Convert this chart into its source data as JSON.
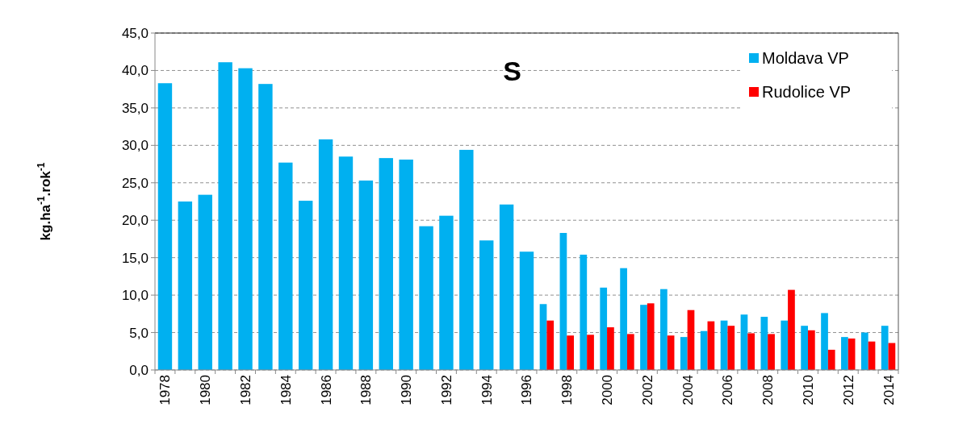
{
  "chart_data": {
    "type": "bar",
    "title": "S",
    "ylabel": "kg.ha$^{-1}$.rok$^{-1}$",
    "categories": [
      "1978",
      null,
      "1980",
      null,
      "1982",
      null,
      "1984",
      null,
      "1986",
      null,
      "1988",
      null,
      "1990",
      null,
      "1992",
      null,
      "1994",
      null,
      "1996",
      null,
      "1998",
      null,
      "2000",
      null,
      "2002",
      null,
      "2004",
      null,
      "2006",
      null,
      "2008",
      null,
      "2010",
      null,
      "2012",
      null,
      "2014"
    ],
    "series": [
      {
        "name": "Moldava VP",
        "color": "#00b0f0",
        "values": [
          38.3,
          22.5,
          23.4,
          41.1,
          40.3,
          38.2,
          27.7,
          22.6,
          30.8,
          28.5,
          25.3,
          28.3,
          28.1,
          19.2,
          20.6,
          29.4,
          17.3,
          22.1,
          15.8,
          8.8,
          18.3,
          15.4,
          11.0,
          13.6,
          8.7,
          10.8,
          4.4,
          5.2,
          6.6,
          7.4,
          7.1,
          6.6,
          5.9,
          7.6,
          4.4,
          5.0,
          5.9
        ]
      },
      {
        "name": "Rudolice VP",
        "color": "#ff0000",
        "values": [
          null,
          null,
          null,
          null,
          null,
          null,
          null,
          null,
          null,
          null,
          null,
          null,
          null,
          null,
          null,
          null,
          null,
          null,
          null,
          6.6,
          4.6,
          4.7,
          5.7,
          4.8,
          8.9,
          4.6,
          8.0,
          6.5,
          5.9,
          4.9,
          4.8,
          10.7,
          5.3,
          2.7,
          4.2,
          3.8,
          3.6
        ]
      }
    ],
    "ylim": [
      0,
      45
    ],
    "yticks": [
      {
        "value": 0,
        "label": "0,0"
      },
      {
        "value": 5,
        "label": "5,0"
      },
      {
        "value": 10,
        "label": "10,0"
      },
      {
        "value": 15,
        "label": "15,0"
      },
      {
        "value": 20,
        "label": "20,0"
      },
      {
        "value": 25,
        "label": "25,0"
      },
      {
        "value": 30,
        "label": "30,0"
      },
      {
        "value": 35,
        "label": "35,0"
      },
      {
        "value": 40,
        "label": "40,0"
      },
      {
        "value": 45,
        "label": "45,0"
      }
    ],
    "grid": "y",
    "legend": "top right"
  }
}
